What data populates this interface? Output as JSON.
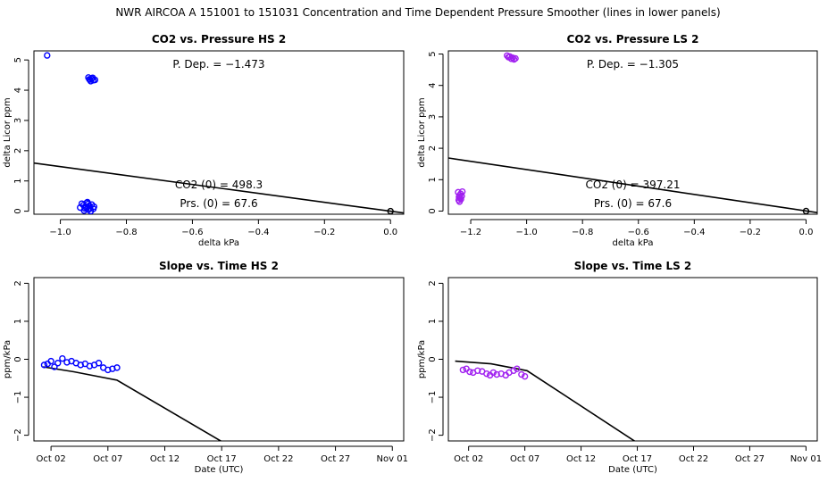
{
  "figure": {
    "title": "NWR   AIRCOA A   151001 to 151031   Concentration and Time Dependent Pressure Smoother (lines in lower panels)"
  },
  "chart_data": [
    {
      "id": "hs-pressure",
      "type": "scatter",
      "title": "CO2 vs. Pressure HS 2",
      "xlabel": "delta kPa",
      "ylabel": "delta Licor ppm",
      "xlim": [
        -1.08,
        0.04
      ],
      "ylim": [
        -0.1,
        5.3
      ],
      "xticks": [
        -1.0,
        -0.8,
        -0.6,
        -0.4,
        -0.2,
        0.0
      ],
      "xtick_labels": [
        "−1.0",
        "−0.8",
        "−0.6",
        "−0.4",
        "−0.2",
        "0.0"
      ],
      "yticks": [
        0,
        1,
        2,
        3,
        4,
        5
      ],
      "ytick_labels": [
        "0",
        "1",
        "2",
        "3",
        "4",
        "5"
      ],
      "point_color": "#0000ff",
      "points": [
        {
          "x": -1.04,
          "y": 5.15
        },
        {
          "x": -0.915,
          "y": 4.42
        },
        {
          "x": -0.91,
          "y": 4.35
        },
        {
          "x": -0.905,
          "y": 4.38
        },
        {
          "x": -0.9,
          "y": 4.33
        },
        {
          "x": -0.908,
          "y": 4.3
        },
        {
          "x": -0.912,
          "y": 4.36
        },
        {
          "x": -0.895,
          "y": 4.34
        },
        {
          "x": -0.902,
          "y": 4.41
        },
        {
          "x": -0.94,
          "y": 0.12
        },
        {
          "x": -0.93,
          "y": 0.2
        },
        {
          "x": -0.925,
          "y": 0.15
        },
        {
          "x": -0.92,
          "y": 0.28
        },
        {
          "x": -0.915,
          "y": 0.05
        },
        {
          "x": -0.91,
          "y": 0.1
        },
        {
          "x": -0.905,
          "y": 0.22
        },
        {
          "x": -0.9,
          "y": 0.08
        },
        {
          "x": -0.918,
          "y": 0.3
        },
        {
          "x": -0.928,
          "y": 0.02
        },
        {
          "x": -0.912,
          "y": 0.18
        },
        {
          "x": -0.935,
          "y": 0.25
        },
        {
          "x": -0.922,
          "y": 0.12
        },
        {
          "x": -0.908,
          "y": 0.0
        },
        {
          "x": -0.898,
          "y": 0.15
        },
        {
          "x": -0.926,
          "y": 0.09
        },
        {
          "x": -0.916,
          "y": 0.24
        },
        {
          "x": 0.0,
          "y": 0.0
        }
      ],
      "fit_line": {
        "x": [
          -1.08,
          0.04
        ],
        "y": [
          1.59,
          -0.059
        ]
      },
      "annotations": {
        "pdep": "P. Dep. =  −1.473",
        "co2_0": "CO2 (0) =  498.3",
        "prs_0": "Prs. (0) =  67.6"
      }
    },
    {
      "id": "ls-pressure",
      "type": "scatter",
      "title": "CO2 vs. Pressure LS 2",
      "xlabel": "delta kPa",
      "ylabel": "delta Licor ppm",
      "xlim": [
        -1.28,
        0.04
      ],
      "ylim": [
        -0.1,
        5.1
      ],
      "xticks": [
        -1.2,
        -1.0,
        -0.8,
        -0.6,
        -0.4,
        -0.2,
        0.0
      ],
      "xtick_labels": [
        "−1.2",
        "−1.0",
        "−0.8",
        "−0.6",
        "−0.4",
        "−0.2",
        "0.0"
      ],
      "yticks": [
        0,
        1,
        2,
        3,
        4,
        5
      ],
      "ytick_labels": [
        "0",
        "1",
        "2",
        "3",
        "4",
        "5"
      ],
      "point_color": "#a020f0",
      "points": [
        {
          "x": -1.07,
          "y": 4.95
        },
        {
          "x": -1.065,
          "y": 4.9
        },
        {
          "x": -1.06,
          "y": 4.92
        },
        {
          "x": -1.055,
          "y": 4.85
        },
        {
          "x": -1.05,
          "y": 4.88
        },
        {
          "x": -1.045,
          "y": 4.83
        },
        {
          "x": -1.04,
          "y": 4.86
        },
        {
          "x": -1.245,
          "y": 0.6
        },
        {
          "x": -1.24,
          "y": 0.5
        },
        {
          "x": -1.238,
          "y": 0.42
        },
        {
          "x": -1.243,
          "y": 0.35
        },
        {
          "x": -1.236,
          "y": 0.55
        },
        {
          "x": -1.232,
          "y": 0.48
        },
        {
          "x": -1.24,
          "y": 0.3
        },
        {
          "x": -1.235,
          "y": 0.38
        },
        {
          "x": -1.23,
          "y": 0.62
        },
        {
          "x": -1.242,
          "y": 0.45
        },
        {
          "x": 0.0,
          "y": 0.0
        }
      ],
      "fit_line": {
        "x": [
          -1.28,
          0.04
        ],
        "y": [
          1.69,
          -0.05
        ]
      },
      "annotations": {
        "pdep": "P. Dep. =  −1.305",
        "co2_0": "CO2 (0) =  397.21",
        "prs_0": "Prs. (0) =  67.6"
      }
    },
    {
      "id": "hs-time",
      "type": "scatter",
      "title": "Slope vs. Time HS 2",
      "xlabel": "Date (UTC)",
      "ylabel": "ppm/kPa",
      "xlim": [
        -0.5,
        32
      ],
      "ylim": [
        -2.15,
        2.15
      ],
      "xticks": [
        1,
        6,
        11,
        16,
        21,
        26,
        31
      ],
      "xtick_labels": [
        "Oct 02",
        "Oct 07",
        "Oct 12",
        "Oct 17",
        "Oct 22",
        "Oct 27",
        "Nov 01"
      ],
      "yticks": [
        -2,
        -1,
        0,
        1,
        2
      ],
      "ytick_labels": [
        "−2",
        "−1",
        "0",
        "1",
        "2"
      ],
      "point_color": "#0000ff",
      "points": [
        {
          "x": 0.4,
          "y": -0.15
        },
        {
          "x": 0.7,
          "y": -0.12
        },
        {
          "x": 1.0,
          "y": -0.05
        },
        {
          "x": 1.3,
          "y": -0.2
        },
        {
          "x": 1.6,
          "y": -0.1
        },
        {
          "x": 2.0,
          "y": 0.02
        },
        {
          "x": 2.4,
          "y": -0.08
        },
        {
          "x": 2.8,
          "y": -0.05
        },
        {
          "x": 3.2,
          "y": -0.1
        },
        {
          "x": 3.6,
          "y": -0.15
        },
        {
          "x": 4.0,
          "y": -0.12
        },
        {
          "x": 4.4,
          "y": -0.18
        },
        {
          "x": 4.8,
          "y": -0.15
        },
        {
          "x": 5.2,
          "y": -0.1
        },
        {
          "x": 5.6,
          "y": -0.22
        },
        {
          "x": 6.0,
          "y": -0.28
        },
        {
          "x": 6.4,
          "y": -0.25
        },
        {
          "x": 6.8,
          "y": -0.22
        }
      ],
      "smoother": {
        "x": [
          0.3,
          3.0,
          6.8,
          16.2
        ],
        "y": [
          -0.2,
          -0.33,
          -0.55,
          -2.2
        ]
      }
    },
    {
      "id": "ls-time",
      "type": "scatter",
      "title": "Slope vs. Time LS 2",
      "xlabel": "Date (UTC)",
      "ylabel": "ppm/kPa",
      "xlim": [
        -0.8,
        32
      ],
      "ylim": [
        -2.15,
        2.15
      ],
      "xticks": [
        1,
        6,
        11,
        16,
        21,
        26,
        31
      ],
      "xtick_labels": [
        "Oct 02",
        "Oct 07",
        "Oct 12",
        "Oct 17",
        "Oct 22",
        "Oct 27",
        "Nov 01"
      ],
      "yticks": [
        -2,
        -1,
        0,
        1,
        2
      ],
      "ytick_labels": [
        "−2",
        "−1",
        "0",
        "1",
        "2"
      ],
      "point_color": "#a020f0",
      "points": [
        {
          "x": 0.5,
          "y": -0.28
        },
        {
          "x": 0.8,
          "y": -0.25
        },
        {
          "x": 1.1,
          "y": -0.33
        },
        {
          "x": 1.4,
          "y": -0.35
        },
        {
          "x": 1.8,
          "y": -0.3
        },
        {
          "x": 2.2,
          "y": -0.32
        },
        {
          "x": 2.6,
          "y": -0.38
        },
        {
          "x": 2.9,
          "y": -0.42
        },
        {
          "x": 3.2,
          "y": -0.35
        },
        {
          "x": 3.5,
          "y": -0.4
        },
        {
          "x": 3.9,
          "y": -0.38
        },
        {
          "x": 4.3,
          "y": -0.42
        },
        {
          "x": 4.6,
          "y": -0.35
        },
        {
          "x": 5.0,
          "y": -0.3
        },
        {
          "x": 5.3,
          "y": -0.25
        },
        {
          "x": 5.7,
          "y": -0.4
        },
        {
          "x": 6.0,
          "y": -0.45
        }
      ],
      "smoother": {
        "x": [
          -0.2,
          3.0,
          6.2,
          16.0
        ],
        "y": [
          -0.05,
          -0.12,
          -0.3,
          -2.2
        ]
      }
    }
  ]
}
